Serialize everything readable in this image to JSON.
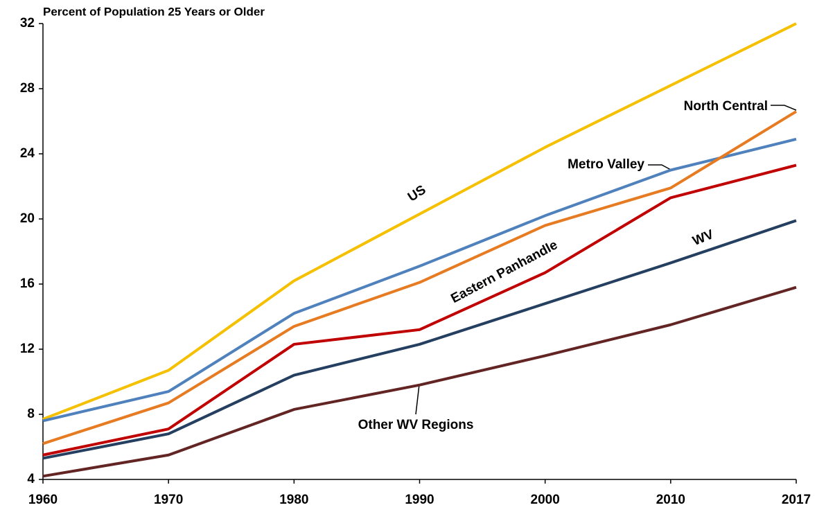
{
  "chart_data": {
    "type": "line",
    "title": "Percent of Population 25 Years or Older",
    "categories": [
      "1960",
      "1970",
      "1980",
      "1990",
      "2000",
      "2010",
      "2017"
    ],
    "series": [
      {
        "name": "US",
        "color": "#f5c000",
        "values": [
          7.7,
          10.7,
          16.2,
          20.3,
          24.4,
          28.2,
          32.0
        ]
      },
      {
        "name": "Metro Valley",
        "color": "#4f81bd",
        "values": [
          7.6,
          9.4,
          14.2,
          17.1,
          20.2,
          23.0,
          24.9
        ]
      },
      {
        "name": "North Central",
        "color": "#e67b22",
        "values": [
          6.2,
          8.7,
          13.4,
          16.1,
          19.6,
          21.9,
          26.6
        ]
      },
      {
        "name": "Eastern Panhandle",
        "color": "#c00000",
        "values": [
          5.5,
          7.1,
          12.3,
          13.2,
          16.7,
          21.3,
          23.3
        ]
      },
      {
        "name": "WV",
        "color": "#243f60",
        "values": [
          5.3,
          6.8,
          10.4,
          12.3,
          14.8,
          17.3,
          19.9
        ]
      },
      {
        "name": "Other WV Regions",
        "color": "#632523",
        "values": [
          4.2,
          5.5,
          8.3,
          9.8,
          11.6,
          13.5,
          15.8
        ]
      }
    ],
    "ylim": [
      4,
      32
    ],
    "yticks": [
      4,
      8,
      12,
      16,
      20,
      24,
      28,
      32
    ],
    "grid": false
  }
}
